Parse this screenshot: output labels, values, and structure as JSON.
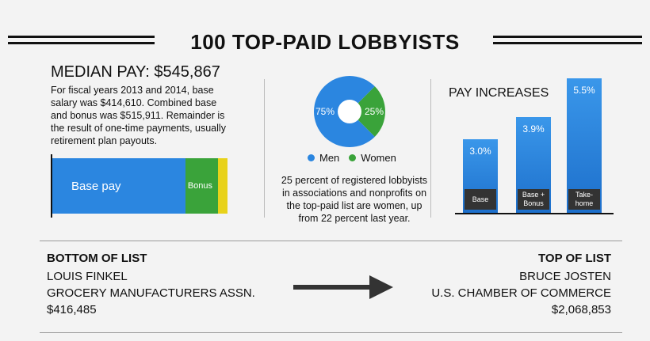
{
  "header": {
    "title": "100 TOP-PAID LOBBYISTS"
  },
  "median": {
    "title": "MEDIAN PAY: $545,867",
    "description": "For fiscal years 2013 and 2014, base salary was $414,610.  Combined base and bonus was $515,911. Remainder is the result of one-time payments, usually retirement plan payouts."
  },
  "gender": {
    "legend_men": "Men",
    "legend_women": "Women",
    "description": "25 percent of registered lobbyists in associations and nonprofits on the top-paid list are women, up from 22 percent last year."
  },
  "pay_increases": {
    "title": "PAY INCREASES"
  },
  "bottom_of_list": {
    "heading": "BOTTOM OF LIST",
    "name": "LOUIS FINKEL",
    "org": "GROCERY MANUFACTURERS ASSN.",
    "pay": "$416,485"
  },
  "top_of_list": {
    "heading": "TOP OF LIST",
    "name": "BRUCE JOSTEN",
    "org": "U.S. CHAMBER OF COMMERCE",
    "pay": "$2,068,853"
  },
  "colors": {
    "blue": "#2b86e0",
    "green": "#3aa33a",
    "yellow": "#e8d21a",
    "dark": "#333333"
  },
  "chart_data": [
    {
      "type": "bar",
      "orientation": "horizontal-stacked",
      "series": [
        {
          "name": "Base pay",
          "value": 414610
        },
        {
          "name": "Bonus",
          "value": 101301
        },
        {
          "name": "",
          "value": 29956
        }
      ]
    },
    {
      "type": "pie",
      "slices": [
        {
          "name": "Men",
          "value": 75,
          "label": "75%"
        },
        {
          "name": "Women",
          "value": 25,
          "label": "25%"
        }
      ]
    },
    {
      "type": "bar",
      "categories": [
        "Base",
        "Base + Bonus",
        "Take-home"
      ],
      "values": [
        3.0,
        3.9,
        5.5
      ],
      "value_labels": [
        "3.0%",
        "3.9%",
        "5.5%"
      ],
      "title": "PAY INCREASES"
    }
  ]
}
